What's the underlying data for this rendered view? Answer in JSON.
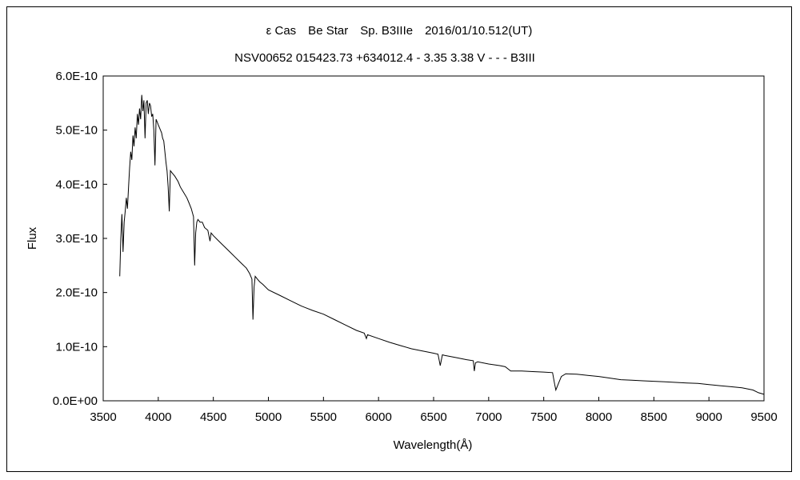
{
  "chart_data": {
    "type": "line",
    "title": "ε Cas　Be Star　Sp. B3IIIe　2016/01/10.512(UT)",
    "subtitle": "NSV00652 015423.73 +634012.4 - 3.35 3.38 V - - - B3III",
    "xlabel": "Wavelength(Å)",
    "ylabel": "Flux",
    "xlim": [
      3500,
      9500
    ],
    "ylim": [
      0,
      6e-10
    ],
    "x_ticks": [
      3500,
      4000,
      4500,
      5000,
      5500,
      6000,
      6500,
      7000,
      7500,
      8000,
      8500,
      9000,
      9500
    ],
    "x_tick_labels": [
      "3500",
      "4000",
      "4500",
      "5000",
      "5500",
      "6000",
      "6500",
      "7000",
      "7500",
      "8000",
      "8500",
      "9000",
      "9500"
    ],
    "y_ticks": [
      0,
      1e-10,
      2e-10,
      3e-10,
      4e-10,
      5e-10,
      6e-10
    ],
    "y_tick_labels": [
      "0.0E+00",
      "1.0E-10",
      "2.0E-10",
      "3.0E-10",
      "4.0E-10",
      "5.0E-10",
      "6.0E-10"
    ],
    "grid": false,
    "legend": "none",
    "colors": {
      "line": "#000000",
      "axes": "#000000",
      "background": "#ffffff"
    },
    "series": [
      {
        "x": [
          3650,
          3660,
          3670,
          3680,
          3690,
          3700,
          3710,
          3720,
          3730,
          3740,
          3750,
          3760,
          3770,
          3780,
          3790,
          3800,
          3810,
          3820,
          3830,
          3840,
          3850,
          3860,
          3870,
          3880,
          3890,
          3900,
          3910,
          3920,
          3930,
          3940,
          3950,
          3960,
          3970,
          3980,
          3990,
          4000,
          4010,
          4020,
          4030,
          4040,
          4050,
          4060,
          4070,
          4080,
          4090,
          4100,
          4110,
          4130,
          4150,
          4180,
          4200,
          4230,
          4260,
          4280,
          4300,
          4320,
          4330,
          4340,
          4350,
          4360,
          4380,
          4400,
          4420,
          4450,
          4470,
          4480,
          4500,
          4550,
          4600,
          4650,
          4700,
          4750,
          4800,
          4830,
          4850,
          4860,
          4870,
          4880,
          4900,
          4920,
          4950,
          5000,
          5100,
          5200,
          5300,
          5400,
          5500,
          5600,
          5700,
          5800,
          5870,
          5890,
          5900,
          6000,
          6100,
          6200,
          6300,
          6400,
          6500,
          6540,
          6560,
          6580,
          6600,
          6700,
          6800,
          6860,
          6870,
          6880,
          6900,
          7000,
          7100,
          7150,
          7200,
          7300,
          7400,
          7500,
          7580,
          7600,
          7610,
          7620,
          7640,
          7660,
          7700,
          7800,
          7900,
          8000,
          8100,
          8200,
          8300,
          8400,
          8500,
          8600,
          8700,
          8800,
          8900,
          9000,
          9100,
          9200,
          9300,
          9400,
          9450,
          9500
        ],
        "y": [
          2.3e-10,
          3e-10,
          3.45e-10,
          2.75e-10,
          3.3e-10,
          3.5e-10,
          3.75e-10,
          3.55e-10,
          3.95e-10,
          4.3e-10,
          4.6e-10,
          4.45e-10,
          4.9e-10,
          4.7e-10,
          5.05e-10,
          4.85e-10,
          5.3e-10,
          5.1e-10,
          5.4e-10,
          5.2e-10,
          5.65e-10,
          5.35e-10,
          5.55e-10,
          4.85e-10,
          5.5e-10,
          5.55e-10,
          5.3e-10,
          5.5e-10,
          5.45e-10,
          5.25e-10,
          5.3e-10,
          5e-10,
          4.35e-10,
          5.2e-10,
          5.15e-10,
          5.1e-10,
          5.05e-10,
          5e-10,
          4.95e-10,
          4.85e-10,
          4.8e-10,
          4.6e-10,
          4.4e-10,
          4.25e-10,
          3.95e-10,
          3.5e-10,
          4.25e-10,
          4.2e-10,
          4.15e-10,
          4.05e-10,
          3.95e-10,
          3.85e-10,
          3.75e-10,
          3.65e-10,
          3.55e-10,
          3.4e-10,
          2.5e-10,
          3.1e-10,
          3.3e-10,
          3.35e-10,
          3.3e-10,
          3.3e-10,
          3.2e-10,
          3.15e-10,
          2.95e-10,
          3.1e-10,
          3.05e-10,
          2.95e-10,
          2.85e-10,
          2.75e-10,
          2.65e-10,
          2.55e-10,
          2.45e-10,
          2.35e-10,
          2.25e-10,
          1.5e-10,
          2.1e-10,
          2.3e-10,
          2.25e-10,
          2.2e-10,
          2.15e-10,
          2.05e-10,
          1.95e-10,
          1.85e-10,
          1.75e-10,
          1.67e-10,
          1.6e-10,
          1.5e-10,
          1.4e-10,
          1.3e-10,
          1.25e-10,
          1.15e-10,
          1.22e-10,
          1.15e-10,
          1.08e-10,
          1.02e-10,
          9.6e-11,
          9.2e-11,
          8.8e-11,
          8.6e-11,
          6.5e-11,
          8.5e-11,
          8.4e-11,
          8e-11,
          7.6e-11,
          7.4e-11,
          5.5e-11,
          7e-11,
          7.2e-11,
          6.8e-11,
          6.5e-11,
          6.3e-11,
          5.5e-11,
          5.5e-11,
          5.4e-11,
          5.3e-11,
          5.2e-11,
          3e-11,
          2e-11,
          2.5e-11,
          3.5e-11,
          4.5e-11,
          5e-11,
          4.9e-11,
          4.7e-11,
          4.5e-11,
          4.2e-11,
          3.9e-11,
          3.8e-11,
          3.7e-11,
          3.6e-11,
          3.5e-11,
          3.4e-11,
          3.3e-11,
          3.2e-11,
          3e-11,
          2.8e-11,
          2.6e-11,
          2.4e-11,
          2e-11,
          1.5e-11,
          1.2e-11
        ]
      }
    ]
  }
}
